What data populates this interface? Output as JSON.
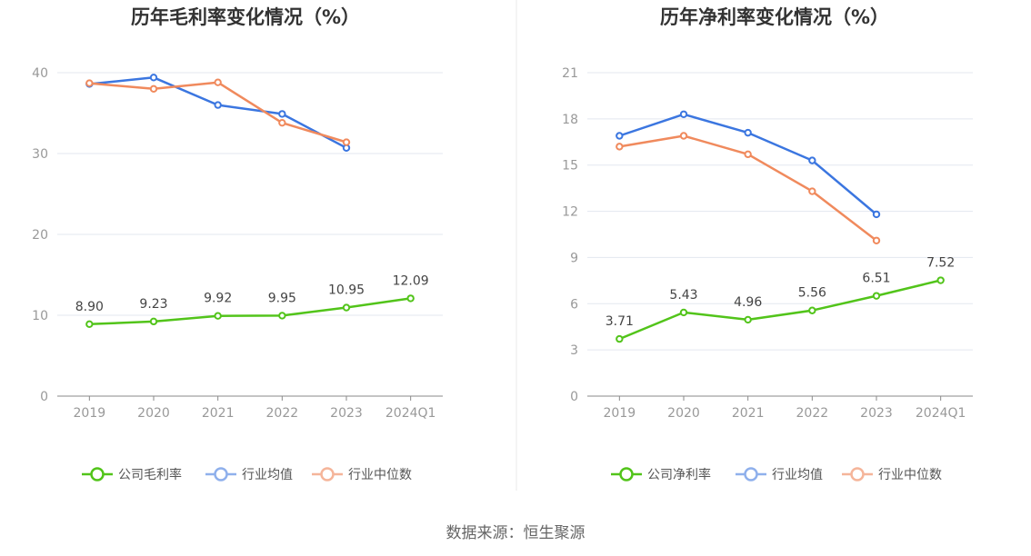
{
  "source_text": "数据来源：恒生聚源",
  "colors": {
    "company": "#52c41a",
    "industry_avg": "#3b76e0",
    "industry_median": "#f08a5d",
    "legend_company": "#52c41a",
    "legend_avg": "#8fb0ec",
    "legend_median": "#f5b59a",
    "grid": "#e3e7ef",
    "axis": "#8a8a8a",
    "divider": "#e8e8e8"
  },
  "chart_data": [
    {
      "type": "line",
      "title": "历年毛利率变化情况（%）",
      "categories": [
        "2019",
        "2020",
        "2021",
        "2022",
        "2023",
        "2024Q1"
      ],
      "ylim": [
        0,
        40
      ],
      "yticks": [
        "0",
        "10",
        "20",
        "30",
        "40"
      ],
      "grid": true,
      "legend_position": "bottom",
      "series": [
        {
          "key": "company",
          "name": "公司毛利率",
          "values": [
            8.9,
            9.23,
            9.92,
            9.95,
            10.95,
            12.09
          ],
          "labels": [
            "8.90",
            "9.23",
            "9.92",
            "9.95",
            "10.95",
            "12.09"
          ]
        },
        {
          "key": "avg",
          "name": "行业均值",
          "values": [
            38.6,
            39.4,
            36.0,
            34.9,
            30.7,
            null
          ]
        },
        {
          "key": "median",
          "name": "行业中位数",
          "values": [
            38.7,
            38.0,
            38.8,
            33.8,
            31.4,
            null
          ]
        }
      ]
    },
    {
      "type": "line",
      "title": "历年净利率变化情况（%）",
      "categories": [
        "2019",
        "2020",
        "2021",
        "2022",
        "2023",
        "2024Q1"
      ],
      "ylim": [
        0,
        21
      ],
      "yticks": [
        "0",
        "3",
        "6",
        "9",
        "12",
        "15",
        "18",
        "21"
      ],
      "grid": true,
      "legend_position": "bottom",
      "series": [
        {
          "key": "company",
          "name": "公司净利率",
          "values": [
            3.71,
            5.43,
            4.96,
            5.56,
            6.51,
            7.52
          ],
          "labels": [
            "3.71",
            "5.43",
            "4.96",
            "5.56",
            "6.51",
            "7.52"
          ]
        },
        {
          "key": "avg",
          "name": "行业均值",
          "values": [
            16.9,
            18.3,
            17.1,
            15.3,
            11.8,
            null
          ]
        },
        {
          "key": "median",
          "name": "行业中位数",
          "values": [
            16.2,
            16.9,
            15.7,
            13.3,
            10.1,
            null
          ]
        }
      ]
    }
  ]
}
